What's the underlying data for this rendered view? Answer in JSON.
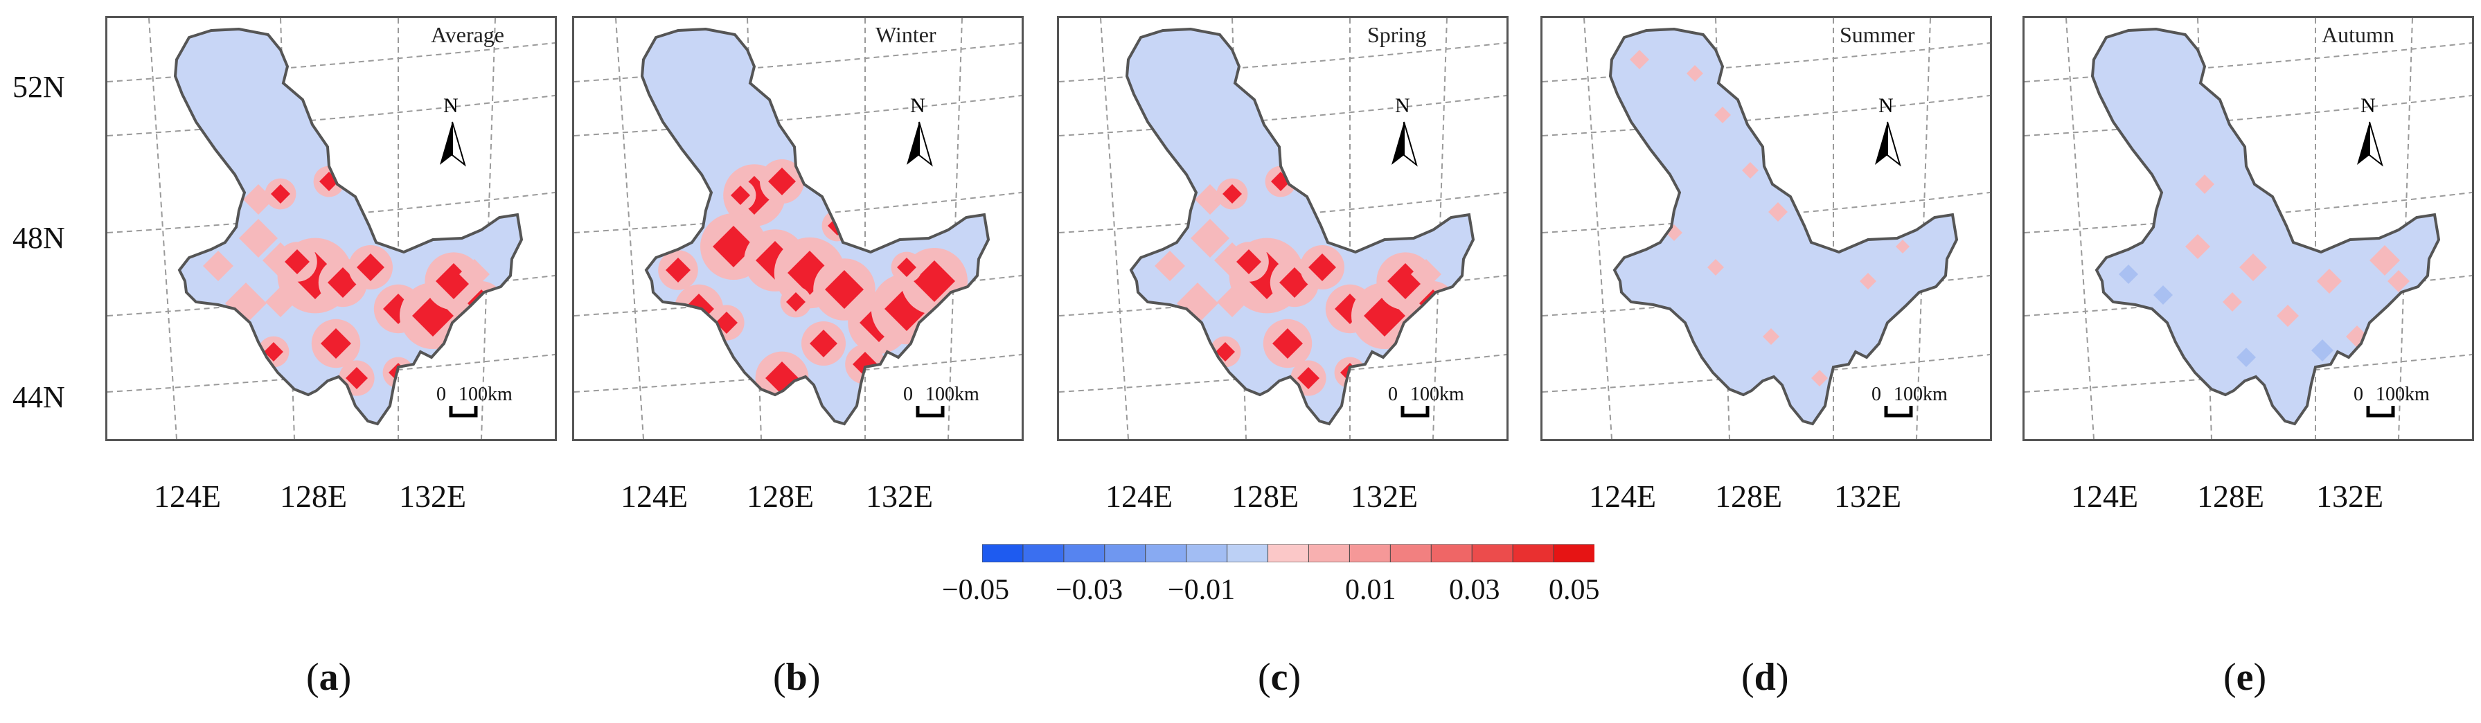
{
  "latitude_labels": [
    "52N",
    "48N",
    "44N"
  ],
  "longitude_labels": [
    "124E",
    "128E",
    "132E"
  ],
  "north_arrow_letter": "N",
  "scale_bar": {
    "zero": "0",
    "distance": "100km"
  },
  "panels": [
    {
      "id": "a",
      "letter": "a",
      "season": "Average",
      "hotspot_level": "strong"
    },
    {
      "id": "b",
      "letter": "b",
      "season": "Winter",
      "hotspot_level": "very-strong"
    },
    {
      "id": "c",
      "letter": "c",
      "season": "Spring",
      "hotspot_level": "strong"
    },
    {
      "id": "d",
      "letter": "d",
      "season": "Summer",
      "hotspot_level": "weak"
    },
    {
      "id": "e",
      "letter": "e",
      "season": "Autumn",
      "hotspot_level": "moderate"
    }
  ],
  "colorbar": {
    "min": -0.05,
    "max": 0.05,
    "tick_labels": [
      "−0.05",
      "−0.03",
      "−0.01",
      "0.01",
      "0.03",
      "0.05"
    ],
    "colors": [
      "#1e5bf0",
      "#3a6ff0",
      "#5684f0",
      "#6f97f0",
      "#88aaf2",
      "#a2bdf3",
      "#bcd0f5",
      "#fbc8c8",
      "#f8b0b0",
      "#f59898",
      "#f28080",
      "#ef6666",
      "#ec4c4c",
      "#e93030",
      "#e61414"
    ]
  },
  "colors": {
    "region_base": "#c8d6f6",
    "pink": "#f6b9bc",
    "red": "#ef1f2e",
    "blue_patch": "#a9c0f2",
    "outline": "#555555",
    "grid": "#9a9a9a"
  }
}
